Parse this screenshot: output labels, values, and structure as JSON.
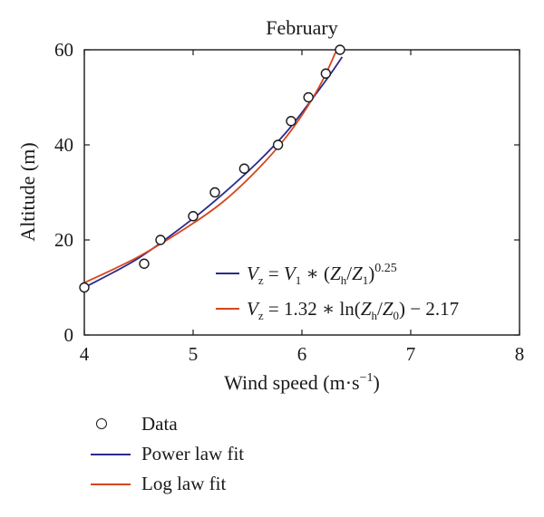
{
  "chart_data": {
    "type": "scatter",
    "title": "February",
    "xlabel": "Wind speed (m·s",
    "xlabel_sup": "−1",
    "xlabel_close": ")",
    "ylabel": "Altitude (m)",
    "xlim": [
      4,
      8
    ],
    "ylim": [
      0,
      60
    ],
    "xticks": [
      "4",
      "5",
      "6",
      "7",
      "8"
    ],
    "yticks": [
      "0",
      "20",
      "40",
      "60"
    ],
    "grid": false,
    "series": [
      {
        "name": "Data",
        "kind": "points",
        "color": "#1a1a1a",
        "x": [
          4.0,
          4.55,
          4.7,
          5.0,
          5.2,
          5.47,
          5.78,
          5.9,
          6.06,
          6.22,
          6.35
        ],
        "y": [
          10,
          15,
          20,
          25,
          30,
          35,
          40,
          45,
          50,
          55,
          60
        ]
      },
      {
        "name": "Power law fit",
        "kind": "line",
        "color": "#2a2a8c",
        "x": [
          4.0,
          4.5,
          5.0,
          5.3,
          5.6,
          5.85,
          6.05,
          6.25,
          6.37
        ],
        "y": [
          10,
          16.2,
          24.5,
          30.2,
          36.5,
          42.5,
          48.3,
          54.5,
          58.5
        ]
      },
      {
        "name": "Log law fit",
        "kind": "line",
        "color": "#d5461c",
        "x": [
          4.0,
          4.5,
          5.0,
          5.3,
          5.6,
          5.85,
          6.05,
          6.2,
          6.31
        ],
        "y": [
          11,
          16.5,
          23.5,
          28.5,
          35.0,
          41.5,
          48.0,
          54.0,
          59.5
        ]
      }
    ],
    "annotations": [
      {
        "text": "V_z = V_1 * (Z_h/Z_1)^0.25",
        "color": "#2a2a8c"
      },
      {
        "text": "V_z = 1.32 * ln(Z_h/Z_0) − 2.17",
        "color": "#d5461c"
      }
    ],
    "legend_position": "below"
  }
}
